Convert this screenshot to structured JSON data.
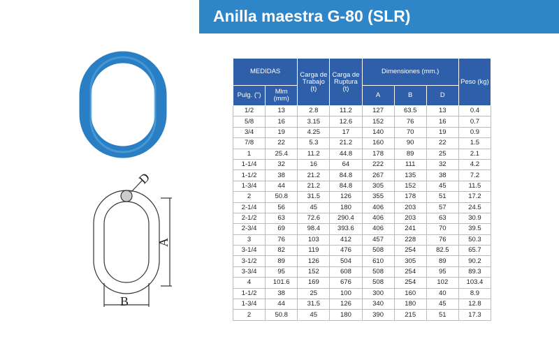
{
  "header": {
    "title": "Anilla maestra G-80 (SLR)"
  },
  "diagram": {
    "labels": [
      "A",
      "B",
      "D"
    ]
  },
  "table": {
    "head": {
      "medidas": "MEDIDAS",
      "carga_trabajo": "Carga de Trabajo (t)",
      "carga_ruptura": "Carga de Ruptura (t)",
      "dimensiones": "Dimensiones (mm.)",
      "peso": "Peso (kg)",
      "pulg": "Pulg. (\")",
      "mlm": "Mlm (mm)",
      "a": "A",
      "b": "B",
      "d": "D"
    },
    "rows": [
      [
        "1/2",
        "13",
        "2.8",
        "11.2",
        "127",
        "63.5",
        "13",
        "0.4"
      ],
      [
        "5/8",
        "16",
        "3.15",
        "12.6",
        "152",
        "76",
        "16",
        "0.7"
      ],
      [
        "3/4",
        "19",
        "4.25",
        "17",
        "140",
        "70",
        "19",
        "0.9"
      ],
      [
        "7/8",
        "22",
        "5.3",
        "21.2",
        "160",
        "90",
        "22",
        "1.5"
      ],
      [
        "1",
        "25.4",
        "11.2",
        "44.8",
        "178",
        "89",
        "25",
        "2.1"
      ],
      [
        "1-1/4",
        "32",
        "16",
        "64",
        "222",
        "111",
        "32",
        "4.2"
      ],
      [
        "1-1/2",
        "38",
        "21.2",
        "84.8",
        "267",
        "135",
        "38",
        "7.2"
      ],
      [
        "1-3/4",
        "44",
        "21.2",
        "84.8",
        "305",
        "152",
        "45",
        "11.5"
      ],
      [
        "2",
        "50.8",
        "31.5",
        "126",
        "355",
        "178",
        "51",
        "17.2"
      ],
      [
        "2-1/4",
        "56",
        "45",
        "180",
        "406",
        "203",
        "57",
        "24.5"
      ],
      [
        "2-1/2",
        "63",
        "72.6",
        "290.4",
        "406",
        "203",
        "63",
        "30.9"
      ],
      [
        "2-3/4",
        "69",
        "98.4",
        "393.6",
        "406",
        "241",
        "70",
        "39.5"
      ],
      [
        "3",
        "76",
        "103",
        "412",
        "457",
        "228",
        "76",
        "50.3"
      ],
      [
        "3-1/4",
        "82",
        "119",
        "476",
        "508",
        "254",
        "82.5",
        "65.7"
      ],
      [
        "3-1/2",
        "89",
        "126",
        "504",
        "610",
        "305",
        "89",
        "90.2"
      ],
      [
        "3-3/4",
        "95",
        "152",
        "608",
        "508",
        "254",
        "95",
        "89.3"
      ],
      [
        "4",
        "101.6",
        "169",
        "676",
        "508",
        "254",
        "102",
        "103.4"
      ],
      [
        "1-1/2",
        "38",
        "25",
        "100",
        "300",
        "160",
        "40",
        "8.9"
      ],
      [
        "1-3/4",
        "44",
        "31.5",
        "126",
        "340",
        "180",
        "45",
        "12.8"
      ],
      [
        "2",
        "50.8",
        "45",
        "180",
        "390",
        "215",
        "51",
        "17.3"
      ]
    ]
  }
}
